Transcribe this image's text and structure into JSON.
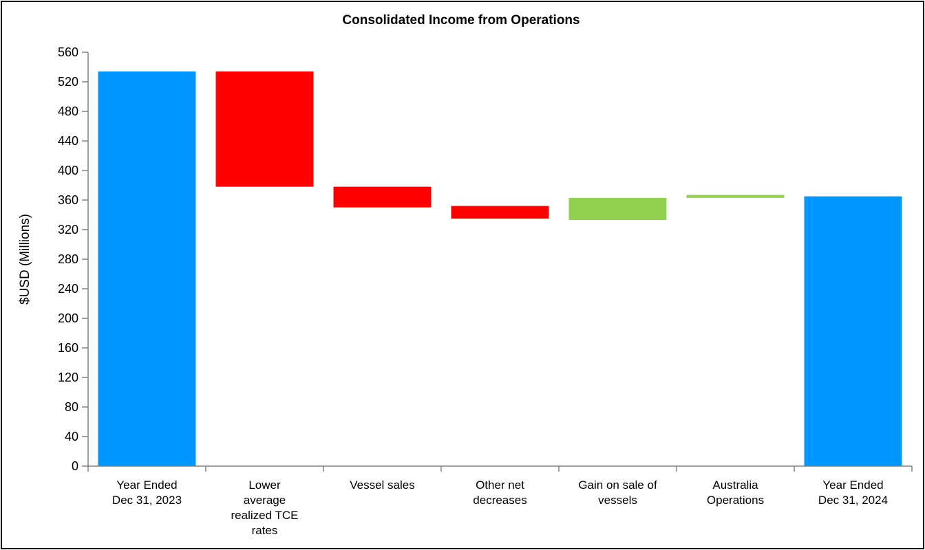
{
  "chart_data": {
    "type": "waterfall",
    "title": "Consolidated Income from  Operations",
    "xlabel": "",
    "ylabel": "$USD (Millions)",
    "ylim": [
      0,
      560
    ],
    "ytick_step": 40,
    "yticks": [
      "0",
      "40",
      "80",
      "120",
      "160",
      "200",
      "240",
      "280",
      "320",
      "360",
      "400",
      "440",
      "480",
      "520",
      "560"
    ],
    "grid": false,
    "categories": [
      [
        "Year Ended",
        "Dec 31, 2023"
      ],
      [
        "Lower",
        "average",
        "realized TCE",
        "rates"
      ],
      [
        "Vessel sales"
      ],
      [
        "Other net",
        "decreases"
      ],
      [
        "Gain on sale of",
        "vessels"
      ],
      [
        "Australia",
        "Operations"
      ],
      [
        "Year Ended",
        "Dec 31, 2024"
      ]
    ],
    "bars": [
      {
        "kind": "total",
        "start": 0,
        "end": 534
      },
      {
        "kind": "decrease",
        "start": 534,
        "end": 378
      },
      {
        "kind": "decrease",
        "start": 378,
        "end": 350
      },
      {
        "kind": "decrease",
        "start": 352,
        "end": 335
      },
      {
        "kind": "increase",
        "start": 333,
        "end": 363
      },
      {
        "kind": "increase",
        "start": 363,
        "end": 367
      },
      {
        "kind": "total",
        "start": 0,
        "end": 365
      }
    ],
    "colors": {
      "total": "#0096FF",
      "decrease": "#FF0000",
      "increase": "#92D050",
      "axis": "#808080"
    }
  }
}
